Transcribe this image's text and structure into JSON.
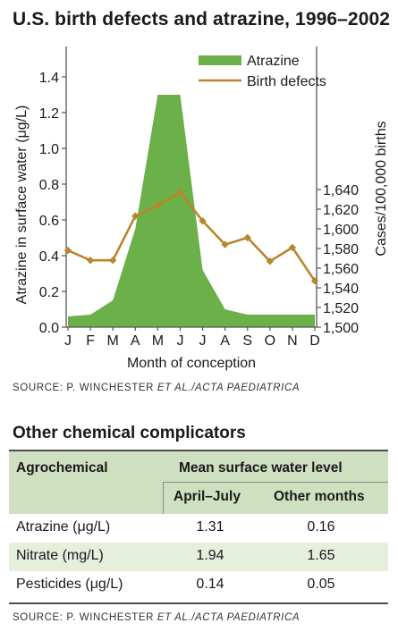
{
  "title": "U.S. birth defects and atrazine, 1996–2002",
  "source1": {
    "prefix": "SOURCE: P. WINCHESTER ",
    "italic": "ET AL./ACTA PAEDIATRICA"
  },
  "chart_data": {
    "type": "area",
    "categories": [
      "J",
      "F",
      "M",
      "A",
      "M",
      "J",
      "J",
      "A",
      "S",
      "O",
      "N",
      "D"
    ],
    "xlabel": "Month of conception",
    "ylabel_left": "Atrazine in surface water (μg/L)",
    "ylabel_right": "Cases/100,000 births",
    "y_left_lim": [
      0,
      1.5
    ],
    "y_left_ticks": [
      "0.0",
      "0.2",
      "0.4",
      "0.6",
      "0.8",
      "1.0",
      "1.2",
      "1.4"
    ],
    "y_right_lim": [
      1500,
      1645
    ],
    "y_right_ticks": [
      "1,500",
      "1,520",
      "1,540",
      "1,560",
      "1,580",
      "1,600",
      "1,620",
      "1,640"
    ],
    "legend_position": "top-right",
    "series": [
      {
        "name": "Atrazine",
        "kind": "area",
        "axis": "left",
        "color": "#6bb048",
        "values": [
          0.06,
          0.07,
          0.15,
          0.55,
          1.3,
          1.3,
          0.32,
          0.1,
          0.07,
          0.07,
          0.07,
          0.07
        ]
      },
      {
        "name": "Birth defects",
        "kind": "line",
        "axis": "right",
        "color": "#b8862e",
        "values": [
          1578,
          1568,
          1568,
          1613,
          1624,
          1637,
          1608,
          1584,
          1591,
          1567,
          1581,
          1547
        ]
      }
    ]
  },
  "table": {
    "title": "Other chemical complicators",
    "header_agro": "Agrochemical",
    "header_mean": "Mean surface water level",
    "header_apr": "April–July",
    "header_other": "Other months",
    "rows": [
      {
        "name": "Atrazine (μg/L)",
        "apr": "1.31",
        "other": "0.16"
      },
      {
        "name": "Nitrate (mg/L)",
        "apr": "1.94",
        "other": "1.65"
      },
      {
        "name": "Pesticides (μg/L)",
        "apr": "0.14",
        "other": "0.05"
      }
    ],
    "row_bg": [
      "#ffffff",
      "#e6eedc",
      "#ffffff"
    ]
  },
  "source2": {
    "prefix": "SOURCE: P. WINCHESTER ",
    "italic": "ET AL./ACTA PAEDIATRICA"
  }
}
